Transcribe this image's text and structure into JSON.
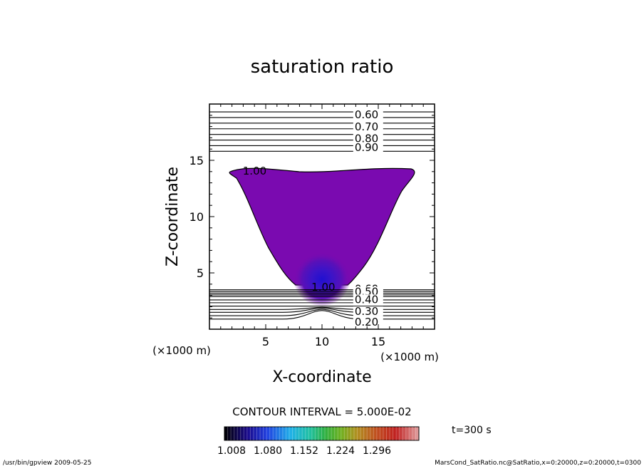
{
  "chart_data": {
    "type": "contour",
    "title": "saturation ratio",
    "xlabel": "X-coordinate",
    "ylabel": "Z-coordinate",
    "x_unit": "(×1000 m)",
    "y_unit": "(×1000 m)",
    "xlim": [
      0,
      20
    ],
    "ylim": [
      0,
      20
    ],
    "x_ticks": [
      5,
      10,
      15
    ],
    "y_ticks": [
      5,
      10,
      15
    ],
    "contour_interval_label": "CONTOUR INTERVAL = 5.000E-02",
    "time_label": "t=300 s",
    "upper_contour_labels": [
      {
        "label": "0.60",
        "z": 19.1
      },
      {
        "label": "0.70",
        "z": 18.05
      },
      {
        "label": "0.80",
        "z": 17.0
      },
      {
        "label": "0.90",
        "z": 16.2
      }
    ],
    "upper_contour_z": [
      19.3,
      18.8,
      18.3,
      17.8,
      17.3,
      16.8,
      16.3,
      15.8
    ],
    "lower_contour_labels": [
      {
        "label": "0.60",
        "z": 3.65
      },
      {
        "label": "0.50",
        "z": 3.4
      },
      {
        "label": "0.40",
        "z": 2.7
      },
      {
        "label": "0.30",
        "z": 1.65
      },
      {
        "label": "0.20",
        "z": 0.7
      }
    ],
    "lower_contour_z": [
      3.5,
      3.35,
      3.2,
      3.05,
      2.9,
      2.6,
      2.35,
      2.05,
      1.75,
      1.5,
      1.2,
      0.9
    ],
    "region_label": {
      "label": "1.00",
      "x": 4.1,
      "z": 14.1
    },
    "bottom_label": {
      "label": "1.00",
      "x": 10.2,
      "z": 3.8
    },
    "colorbar_ticks": [
      "1.008",
      "1.080",
      "1.152",
      "1.224",
      "1.296"
    ]
  },
  "footer": {
    "left": "/usr/bin/gpview   2009-05-25",
    "right": "MarsCond_SatRatio.nc@SatRatio,x=0:20000,z=0:20000,t=0300"
  }
}
